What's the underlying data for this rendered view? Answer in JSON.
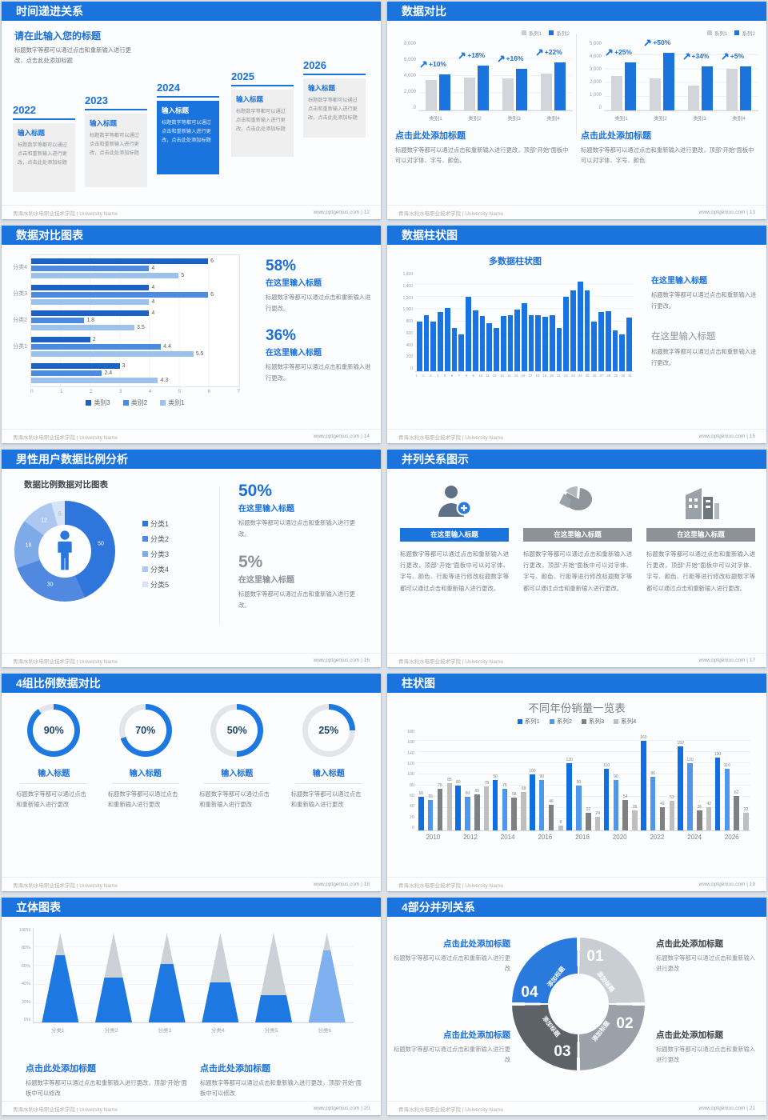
{
  "footer": {
    "left": "青海水利水电职业技术学院 | University Name",
    "site": "www.pptgenius.com"
  },
  "slides": [
    {
      "title": "时间递进关系",
      "page_label": "| 12",
      "heading": "请在此输入您的标题",
      "intro": "标题数字等都可以通过点击和重新输入进行更改，点击此处添加标题",
      "steps": [
        {
          "year": "2022",
          "title": "输入标题",
          "body": "标题数字等都可以通过点击和重新输入进行更改，点击此处添加标题",
          "highlight": false
        },
        {
          "year": "2023",
          "title": "输入标题",
          "body": "标题数字等都可以通过点击和重新输入进行更改，点击此处添加标题",
          "highlight": false
        },
        {
          "year": "2024",
          "title": "输入标题",
          "body": "标题数字等都可以通过点击和重新输入进行更改，点击此处添加标题",
          "highlight": true
        },
        {
          "year": "2025",
          "title": "输入标题",
          "body": "标题数字等都可以通过点击和重新输入进行更改，点击此处添加标题",
          "highlight": false
        },
        {
          "year": "2026",
          "title": "输入标题",
          "body": "标题数字等都可以通过点击和重新输入进行更改，点击此处添加标题",
          "highlight": false
        }
      ]
    },
    {
      "title": "数据对比",
      "page_label": "| 13",
      "legend": [
        "系列1",
        "系列2"
      ],
      "charts": [
        {
          "categories": [
            "类别1",
            "类别2",
            "类别3",
            "类别4"
          ],
          "yticks": [
            "8,000",
            "6,000",
            "4,000",
            "2,000",
            "0"
          ],
          "ymax": 8000,
          "series1": [
            3500,
            3800,
            3700,
            4300
          ],
          "series2": [
            4200,
            5200,
            4800,
            5600
          ],
          "deltas": [
            "+10%",
            "+18%",
            "+16%",
            "+22%"
          ],
          "caption_title": "点击此处添加标题",
          "caption_body": "标题数字等都可以通过点击和重新输入进行更改，顶部“开始”面板中可以对字体、字号、颜色。"
        },
        {
          "categories": [
            "类别1",
            "类别2",
            "类别3",
            "类别4"
          ],
          "yticks": [
            "5,000",
            "4,000",
            "3,000",
            "2,000",
            "1,000",
            "0"
          ],
          "ymax": 5000,
          "series1": [
            2500,
            2300,
            1800,
            3000
          ],
          "series2": [
            3500,
            4200,
            3200,
            3200
          ],
          "deltas": [
            "+25%",
            "+50%",
            "+34%",
            "+5%"
          ],
          "caption_title": "点击此处添加标题",
          "caption_body": "标题数字等都可以通过点击和重新输入进行更改，顶部“开始”面板中可以对字体、字号、颜色"
        }
      ]
    },
    {
      "title": "数据对比图表",
      "page_label": "| 14",
      "chart": {
        "xticks": [
          "0",
          "1",
          "2",
          "3",
          "4",
          "5",
          "6",
          "7"
        ],
        "xmax": 7,
        "legend": [
          {
            "label": "类别3",
            "color": "#1b62c4"
          },
          {
            "label": "类别2",
            "color": "#4c8be0"
          },
          {
            "label": "类别1",
            "color": "#9cc2ec"
          }
        ],
        "rows": [
          {
            "label": "分类4",
            "values": [
              6,
              4,
              5
            ]
          },
          {
            "label": "分类3",
            "values": [
              4,
              6,
              4
            ]
          },
          {
            "label": "分类2",
            "values": [
              4,
              1.8,
              3.5
            ]
          },
          {
            "label": "分类1",
            "values": [
              2,
              4.4,
              5.5
            ]
          },
          {
            "label": "",
            "values": [
              3,
              2.4,
              4.3
            ]
          }
        ]
      },
      "stats": [
        {
          "value": "58%",
          "title": "在这里输入标题",
          "body": "标题数字等都可以通过点击和重新输入进行更改。"
        },
        {
          "value": "36%",
          "title": "在这里输入标题",
          "body": "标题数字等都可以通过点击和重新输入进行更改。"
        }
      ]
    },
    {
      "title": "数据柱状图",
      "page_label": "| 15",
      "chart_title": "多数据柱状图",
      "yticks": [
        "1,600",
        "1,400",
        "1,200",
        "1,000",
        "800",
        "600",
        "400",
        "200",
        "0"
      ],
      "ymax": 1600,
      "values": [
        800,
        900,
        800,
        950,
        1020,
        700,
        600,
        1200,
        980,
        890,
        780,
        700,
        890,
        900,
        990,
        1100,
        900,
        900,
        880,
        900,
        700,
        1200,
        1300,
        1450,
        1300,
        800,
        960,
        970,
        660,
        600,
        870
      ],
      "xlabels": [
        "1",
        "2",
        "3",
        "4",
        "5",
        "6",
        "7",
        "8",
        "9",
        "10",
        "11",
        "12",
        "13",
        "14",
        "15",
        "16",
        "17",
        "18",
        "19",
        "20",
        "21",
        "22",
        "23",
        "24",
        "25",
        "26",
        "27",
        "28",
        "29",
        "30",
        "31"
      ],
      "blocks": [
        {
          "title": "在这里输入标题",
          "body": "标题数字等都可以通过点击和重新输入进行更改。",
          "style": "blue"
        },
        {
          "title": "在这里输入标题",
          "body": "标题数字等都可以通过点击和重新输入进行更改。",
          "style": "gray"
        }
      ]
    },
    {
      "title": "男性用户数据比例分析",
      "page_label": "| 16",
      "chart_title": "数据比例数据对比图表",
      "segments": [
        {
          "label": "分类1",
          "value": 50,
          "color": "#2e76db"
        },
        {
          "label": "分类2",
          "value": 30,
          "color": "#5188e0"
        },
        {
          "label": "分类3",
          "value": 18,
          "color": "#7faae8"
        },
        {
          "label": "分类4",
          "value": 12,
          "color": "#adc8f0"
        },
        {
          "label": "分类5",
          "value": 5,
          "color": "#d7e3f6"
        }
      ],
      "stats": [
        {
          "value": "50%",
          "title": "在这里输入标题",
          "body": "标题数字等都可以通过点击和重新输入进行更改。",
          "style": "blue"
        },
        {
          "value": "5%",
          "title": "在这里输入标题",
          "body": "标题数字等都可以通过点击和重新输入进行更改。",
          "style": "gray"
        }
      ]
    },
    {
      "title": "并列关系图示",
      "page_label": "| 17",
      "cards": [
        {
          "icon": "person-plus",
          "header": "在这里输入标题",
          "style": "blue"
        },
        {
          "icon": "pie-3d",
          "header": "在这里输入标题",
          "style": "gray"
        },
        {
          "icon": "building",
          "header": "在这里输入标题",
          "style": "gray"
        }
      ],
      "card_body": "标题数字等都可以通过点击和重新输入进行更改，顶部“开始”面板中可以对字体、字号、颜色、行距等进行修改标题数字等都可以通过点击和重新输入进行更改。"
    },
    {
      "title": "4组比例数据对比",
      "page_label": "| 18",
      "ring_title": "输入标题",
      "ring_body": "标题数字等都可以通过点击和重新输入进行更改",
      "rings": [
        {
          "pct": 90,
          "label": "90%"
        },
        {
          "pct": 70,
          "label": "70%"
        },
        {
          "pct": 50,
          "label": "50%"
        },
        {
          "pct": 25,
          "label": "25%"
        }
      ]
    },
    {
      "title": "柱状图",
      "page_label": "| 19",
      "chart_title": "不同年份销量一览表",
      "categories": [
        "2010",
        "2012",
        "2014",
        "2016",
        "2018",
        "2020",
        "2022",
        "2024",
        "2026"
      ],
      "yticks": [
        "180",
        "160",
        "140",
        "120",
        "100",
        "80",
        "60",
        "40",
        "20",
        "0"
      ],
      "ymax": 180,
      "series": [
        {
          "name": "系列1",
          "color": "#0f6fe0",
          "values": [
            60,
            80,
            90,
            100,
            120,
            110,
            160,
            150,
            130
          ]
        },
        {
          "name": "系列2",
          "color": "#4e97ec",
          "values": [
            55,
            60,
            75,
            90,
            80,
            90,
            96,
            120,
            110
          ]
        },
        {
          "name": "系列3",
          "color": "#808080",
          "values": [
            75,
            65,
            58,
            46,
            32,
            54,
            42,
            36,
            62
          ]
        },
        {
          "name": "系列4",
          "color": "#bfbfbf",
          "values": [
            85,
            78,
            68,
            8,
            24,
            36,
            53,
            42,
            32
          ]
        }
      ]
    },
    {
      "title": "立体图表",
      "page_label": "| 20",
      "yticks": [
        "100%",
        "80%",
        "60%",
        "40%",
        "20%",
        "0%"
      ],
      "categories": [
        "分类1",
        "分类2",
        "分类3",
        "分类4",
        "分类5",
        "分类6"
      ],
      "fills": [
        75,
        50,
        65,
        45,
        30,
        80
      ],
      "cone_colors": [
        "#1d78e2",
        "#1d78e2",
        "#1d78e2",
        "#1d78e2",
        "#1d78e2",
        "#7fb0ef"
      ],
      "captions": [
        {
          "title": "点击此处添加标题",
          "body": "标题数字等都可以通过点击和重新输入进行更改，顶部“开始”面板中可以修改"
        },
        {
          "title": "点击此处添加标题",
          "body": "标题数字等都可以通过点击和重新输入进行更改，顶部“开始”面板中可以修改"
        }
      ]
    },
    {
      "title": "4部分并列关系",
      "page_label": "| 21",
      "segments": [
        {
          "num": "01",
          "label": "添加标题",
          "color": "#c9ced4"
        },
        {
          "num": "02",
          "label": "添加标题",
          "color": "#9aa1a8"
        },
        {
          "num": "03",
          "label": "添加标题",
          "color": "#5c6268"
        },
        {
          "num": "04",
          "label": "添加标题",
          "color": "#2a7ade"
        }
      ],
      "callouts": [
        {
          "title": "点击此处添加标题",
          "body": "标题数字等都可以通过点击和重新输入进行更改",
          "style": "blue",
          "pos": "tl"
        },
        {
          "title": "点击此处添加标题",
          "body": "标题数字等都可以通过点击和重新输入进行更改",
          "style": "dark",
          "pos": "tr"
        },
        {
          "title": "点击此处添加标题",
          "body": "标题数字等都可以通过点击和重新输入进行更改",
          "style": "blue",
          "pos": "bl"
        },
        {
          "title": "点击此处添加标题",
          "body": "标题数字等都可以通过点击和重新输入进行更改",
          "style": "dark",
          "pos": "br"
        }
      ]
    }
  ]
}
